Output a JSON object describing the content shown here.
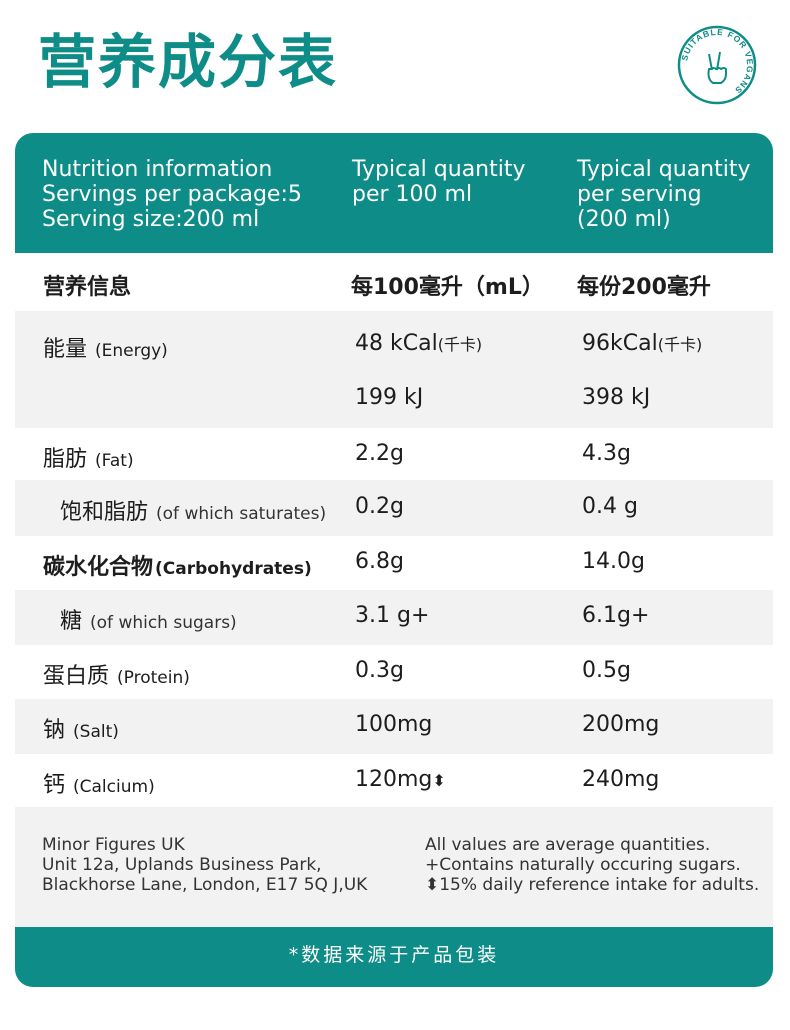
{
  "title": "营养成分表",
  "badge": {
    "text": "SUITABLE FOR VEGANS",
    "color": "#0e8c87",
    "icon": "peace-hand-icon"
  },
  "header": {
    "col1": [
      "Nutrition information",
      "Servings per package:5",
      "Serving size:200 ml"
    ],
    "col2": [
      "Typical quantity",
      "per 100 ml"
    ],
    "col3": [
      "Typical quantity",
      "per serving",
      "(200 ml)"
    ]
  },
  "subheader": {
    "label": "营养信息",
    "per100": "每100毫升（mL）",
    "perServing": "每份200毫升"
  },
  "rows": {
    "energy": {
      "cn": "能量",
      "en": "(Energy)",
      "v1a": "48 kCal",
      "v1a_unit": "(千卡)",
      "v2a": "96kCal",
      "v2a_unit": "(千卡)",
      "v1b": "199 kJ",
      "v2b": "398 kJ"
    },
    "fat": {
      "cn": "脂肪",
      "en": "(Fat)",
      "v1": "2.2g",
      "v2": "4.3g"
    },
    "saturates": {
      "cn": "饱和脂肪",
      "en": "(of which saturates)",
      "v1": "0.2g",
      "v2": "0.4 g"
    },
    "carbs": {
      "cn": "碳水化合物",
      "en": "(Carbohydrates)",
      "v1": "6.8g",
      "v2": "14.0g"
    },
    "sugars": {
      "cn": "糖",
      "en": "(of which sugars)",
      "v1": "3.1 g+",
      "v2": "6.1g+"
    },
    "protein": {
      "cn": "蛋白质",
      "en": "(Protein)",
      "v1": "0.3g",
      "v2": "0.5g"
    },
    "salt": {
      "cn": "钠",
      "en": "(Salt)",
      "v1": "100mg",
      "v2": "200mg"
    },
    "calcium": {
      "cn": "钙",
      "en": "(Calcium)",
      "v1": "120mg",
      "v1_mark": "⬍",
      "v2": "240mg"
    }
  },
  "footer": {
    "address": [
      "Minor Figures UK",
      "Unit 12a, Uplands Business Park,",
      "Blackhorse Lane, London, E17 5Q J,UK"
    ],
    "notes": [
      "All values are average quantities.",
      "+Contains naturally occuring sugars.",
      "⬍15% daily reference intake for adults."
    ]
  },
  "bottom_note": "*数据来源于产品包装",
  "colors": {
    "accent": "#0e8c87",
    "rowLight": "#f2f2f2",
    "rowWhite": "#ffffff"
  }
}
